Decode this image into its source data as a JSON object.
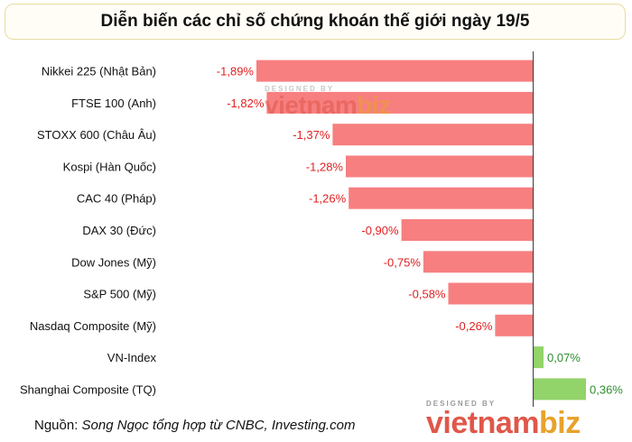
{
  "title": "Diễn biến các chỉ số chứng khoán thế giới ngày 19/5",
  "source": {
    "prefix": "Nguồn: ",
    "text": "Song Ngọc tổng hợp từ CNBC, Investing.com"
  },
  "watermark": {
    "small": "DESIGNED BY",
    "brand_a": "vietnam",
    "brand_b": "biz"
  },
  "colors": {
    "negative_bar": "#f77f80",
    "positive_bar": "#92d36a",
    "negative_label": "#e02020",
    "positive_label": "#2e8b2e",
    "axis": "#333333"
  },
  "chart_data": {
    "type": "bar",
    "orientation": "horizontal",
    "title": "Diễn biến các chỉ số chứng khoán thế giới ngày 19/5",
    "unit": "%",
    "categories": [
      "Nikkei 225 (Nhật Bản)",
      "FTSE 100 (Anh)",
      "STOXX 600 (Châu Âu)",
      "Kospi (Hàn Quốc)",
      "CAC 40 (Pháp)",
      "DAX 30 (Đức)",
      "Dow Jones (Mỹ)",
      "S&P 500 (Mỹ)",
      "Nasdaq Composite (Mỹ)",
      "VN-Index",
      "Shanghai Composite (TQ)"
    ],
    "values": [
      -1.89,
      -1.82,
      -1.37,
      -1.28,
      -1.26,
      -0.9,
      -0.75,
      -0.58,
      -0.26,
      0.07,
      0.36
    ],
    "labels": [
      "-1,89%",
      "-1,82%",
      "-1,37%",
      "-1,28%",
      "-1,26%",
      "-0,90%",
      "-0,75%",
      "-0,58%",
      "-0,26%",
      "0,07%",
      "0,36%"
    ],
    "xlim": [
      -1.89,
      0.36
    ],
    "grid": false,
    "legend": "none"
  }
}
